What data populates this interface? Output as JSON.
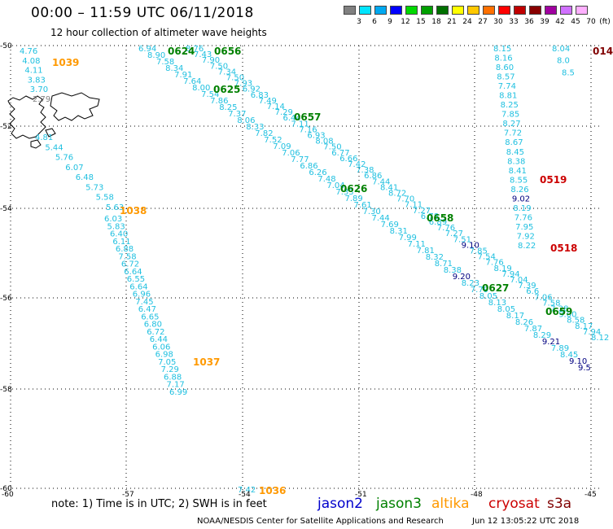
{
  "header": {
    "title": "00:00 – 11:59 UTC 06/11/2018",
    "subtitle": "12 hour collection of altimeter wave heights"
  },
  "colorbar": {
    "units": "(ft)",
    "cells": [
      {
        "label": "3",
        "color": "#808080"
      },
      {
        "label": "6",
        "color": "#00e5ff"
      },
      {
        "label": "9",
        "color": "#00a8f0"
      },
      {
        "label": "12",
        "color": "#0000ff"
      },
      {
        "label": "15",
        "color": "#00d800"
      },
      {
        "label": "18",
        "color": "#00a000"
      },
      {
        "label": "21",
        "color": "#007000"
      },
      {
        "label": "24",
        "color": "#ffff00"
      },
      {
        "label": "27",
        "color": "#ffc800"
      },
      {
        "label": "30",
        "color": "#ff7000"
      },
      {
        "label": "33",
        "color": "#ff0000"
      },
      {
        "label": "36",
        "color": "#c00000"
      },
      {
        "label": "39",
        "color": "#880000"
      },
      {
        "label": "42",
        "color": "#a000a0"
      },
      {
        "label": "45",
        "color": "#d070ff"
      },
      {
        "label": "70",
        "color": "#ffb0ff"
      }
    ]
  },
  "axes": {
    "lat_labels": [
      "-50",
      "-52",
      "-54",
      "-56",
      "-58",
      "-60"
    ],
    "lon_labels": [
      "-60",
      "-57",
      "-54",
      "-51",
      "-48",
      "-45"
    ]
  },
  "colors": {
    "cyan": "#20c0e0",
    "navy": "#000080",
    "green": "#008000",
    "orange": "#ff9900",
    "red": "#cc0000",
    "darkred": "#800000",
    "gray": "#808080",
    "land": "#000000"
  },
  "points": [
    {
      "t": "4.76",
      "c": "cyan"
    },
    {
      "t": "4.08",
      "c": "cyan"
    },
    {
      "t": "4.11",
      "c": "cyan"
    },
    {
      "t": "3.83",
      "c": "cyan"
    },
    {
      "t": "3.70",
      "c": "cyan"
    },
    {
      "t": "2.79",
      "c": "gray"
    },
    {
      "t": "4.81",
      "c": "cyan"
    },
    {
      "t": "5.44",
      "c": "cyan"
    },
    {
      "t": "5.76",
      "c": "cyan"
    },
    {
      "t": "6.07",
      "c": "cyan"
    },
    {
      "t": "6.48",
      "c": "cyan"
    },
    {
      "t": "5.73",
      "c": "cyan"
    },
    {
      "t": "5.58",
      "c": "cyan"
    },
    {
      "t": "5.63",
      "c": "cyan"
    },
    {
      "t": "6.03",
      "c": "cyan"
    },
    {
      "t": "5.83",
      "c": "cyan"
    },
    {
      "t": "6.40",
      "c": "cyan"
    },
    {
      "t": "6.11",
      "c": "cyan"
    },
    {
      "t": "6.88",
      "c": "cyan"
    },
    {
      "t": "7.58",
      "c": "cyan"
    },
    {
      "t": "6.72",
      "c": "cyan"
    },
    {
      "t": "6.64",
      "c": "cyan"
    },
    {
      "t": "6.55",
      "c": "cyan"
    },
    {
      "t": "6.64",
      "c": "cyan"
    },
    {
      "t": "6.96",
      "c": "cyan"
    },
    {
      "t": "7.45",
      "c": "cyan"
    },
    {
      "t": "6.47",
      "c": "cyan"
    },
    {
      "t": "6.65",
      "c": "cyan"
    },
    {
      "t": "6.80",
      "c": "cyan"
    },
    {
      "t": "6.72",
      "c": "cyan"
    },
    {
      "t": "6.44",
      "c": "cyan"
    },
    {
      "t": "6.06",
      "c": "cyan"
    },
    {
      "t": "6.98",
      "c": "cyan"
    },
    {
      "t": "7.05",
      "c": "cyan"
    },
    {
      "t": "7.29",
      "c": "cyan"
    },
    {
      "t": "6.88",
      "c": "cyan"
    },
    {
      "t": "7.17",
      "c": "cyan"
    },
    {
      "t": "6.99",
      "c": "cyan"
    },
    {
      "t": "7.42",
      "c": "cyan"
    },
    {
      "t": "6.94",
      "c": "cyan"
    },
    {
      "t": "8.90",
      "c": "cyan"
    },
    {
      "t": "7.58",
      "c": "cyan"
    },
    {
      "t": "8.34",
      "c": "cyan"
    },
    {
      "t": "7.91",
      "c": "cyan"
    },
    {
      "t": "7.64",
      "c": "cyan"
    },
    {
      "t": "8.00",
      "c": "cyan"
    },
    {
      "t": "7.54",
      "c": "cyan"
    },
    {
      "t": "7.86",
      "c": "cyan"
    },
    {
      "t": "8.25",
      "c": "cyan"
    },
    {
      "t": "7.37",
      "c": "cyan"
    },
    {
      "t": "8.06",
      "c": "cyan"
    },
    {
      "t": "8.33",
      "c": "cyan"
    },
    {
      "t": "7.82",
      "c": "cyan"
    },
    {
      "t": "7.52",
      "c": "cyan"
    },
    {
      "t": "7.09",
      "c": "cyan"
    },
    {
      "t": "7.06",
      "c": "cyan"
    },
    {
      "t": "7.77",
      "c": "cyan"
    },
    {
      "t": "6.86",
      "c": "cyan"
    },
    {
      "t": "6.26",
      "c": "cyan"
    },
    {
      "t": "7.48",
      "c": "cyan"
    },
    {
      "t": "7.04",
      "c": "cyan"
    },
    {
      "t": "7.33",
      "c": "cyan"
    },
    {
      "t": "7.89",
      "c": "cyan"
    },
    {
      "t": "7.61",
      "c": "cyan"
    },
    {
      "t": "7.30",
      "c": "cyan"
    },
    {
      "t": "7.44",
      "c": "cyan"
    },
    {
      "t": "7.69",
      "c": "cyan"
    },
    {
      "t": "8.31",
      "c": "cyan"
    },
    {
      "t": "7.99",
      "c": "cyan"
    },
    {
      "t": "7.11",
      "c": "cyan"
    },
    {
      "t": "7.81",
      "c": "cyan"
    },
    {
      "t": "8.32",
      "c": "cyan"
    },
    {
      "t": "8.71",
      "c": "cyan"
    },
    {
      "t": "8.38",
      "c": "cyan"
    },
    {
      "t": "9.20",
      "c": "navy"
    },
    {
      "t": "8.23",
      "c": "cyan"
    },
    {
      "t": "7.79",
      "c": "cyan"
    },
    {
      "t": "8.05",
      "c": "cyan"
    },
    {
      "t": "8.13",
      "c": "cyan"
    },
    {
      "t": "8.05",
      "c": "cyan"
    },
    {
      "t": "8.17",
      "c": "cyan"
    },
    {
      "t": "8.26",
      "c": "cyan"
    },
    {
      "t": "7.87",
      "c": "cyan"
    },
    {
      "t": "8.29",
      "c": "cyan"
    },
    {
      "t": "9.21",
      "c": "navy"
    },
    {
      "t": "7.89",
      "c": "cyan"
    },
    {
      "t": "8.45",
      "c": "cyan"
    },
    {
      "t": "9.10",
      "c": "navy"
    },
    {
      "t": "9.5",
      "c": "navy"
    },
    {
      "t": "8.76",
      "c": "cyan"
    },
    {
      "t": "7.43",
      "c": "cyan"
    },
    {
      "t": "7.90",
      "c": "cyan"
    },
    {
      "t": "7.50",
      "c": "cyan"
    },
    {
      "t": "7.34",
      "c": "cyan"
    },
    {
      "t": "7.50",
      "c": "cyan"
    },
    {
      "t": "7.93",
      "c": "cyan"
    },
    {
      "t": "6.92",
      "c": "cyan"
    },
    {
      "t": "6.83",
      "c": "cyan"
    },
    {
      "t": "7.49",
      "c": "cyan"
    },
    {
      "t": "7.14",
      "c": "cyan"
    },
    {
      "t": "7.29",
      "c": "cyan"
    },
    {
      "t": "6.44",
      "c": "cyan"
    },
    {
      "t": "7.11",
      "c": "cyan"
    },
    {
      "t": "7.16",
      "c": "cyan"
    },
    {
      "t": "6.93",
      "c": "cyan"
    },
    {
      "t": "8.08",
      "c": "cyan"
    },
    {
      "t": "7.50",
      "c": "cyan"
    },
    {
      "t": "6.77",
      "c": "cyan"
    },
    {
      "t": "6.66",
      "c": "cyan"
    },
    {
      "t": "7.42",
      "c": "cyan"
    },
    {
      "t": "7.38",
      "c": "cyan"
    },
    {
      "t": "6.86",
      "c": "cyan"
    },
    {
      "t": "7.44",
      "c": "cyan"
    },
    {
      "t": "8.41",
      "c": "cyan"
    },
    {
      "t": "8.72",
      "c": "cyan"
    },
    {
      "t": "7.70",
      "c": "cyan"
    },
    {
      "t": "7.11",
      "c": "cyan"
    },
    {
      "t": "7.27",
      "c": "cyan"
    },
    {
      "t": "6.78",
      "c": "cyan"
    },
    {
      "t": "6.89",
      "c": "cyan"
    },
    {
      "t": "7.76",
      "c": "cyan"
    },
    {
      "t": "7.27",
      "c": "cyan"
    },
    {
      "t": "7.51",
      "c": "cyan"
    },
    {
      "t": "9.10",
      "c": "navy"
    },
    {
      "t": "7.85",
      "c": "cyan"
    },
    {
      "t": "7.54",
      "c": "cyan"
    },
    {
      "t": "7.76",
      "c": "cyan"
    },
    {
      "t": "8.19",
      "c": "cyan"
    },
    {
      "t": "7.94",
      "c": "cyan"
    },
    {
      "t": "7.04",
      "c": "cyan"
    },
    {
      "t": "7.39",
      "c": "cyan"
    },
    {
      "t": "6.6",
      "c": "cyan"
    },
    {
      "t": "7.06",
      "c": "cyan"
    },
    {
      "t": "7.58",
      "c": "cyan"
    },
    {
      "t": "7.28",
      "c": "cyan"
    },
    {
      "t": "9.00",
      "c": "cyan"
    },
    {
      "t": "8.58",
      "c": "cyan"
    },
    {
      "t": "8.17",
      "c": "cyan"
    },
    {
      "t": "7.94",
      "c": "cyan"
    },
    {
      "t": "8.12",
      "c": "cyan"
    },
    {
      "t": "8.15",
      "c": "cyan"
    },
    {
      "t": "8.16",
      "c": "cyan"
    },
    {
      "t": "8.60",
      "c": "cyan"
    },
    {
      "t": "8.57",
      "c": "cyan"
    },
    {
      "t": "7.74",
      "c": "cyan"
    },
    {
      "t": "8.81",
      "c": "cyan"
    },
    {
      "t": "8.25",
      "c": "cyan"
    },
    {
      "t": "7.85",
      "c": "cyan"
    },
    {
      "t": "8.27",
      "c": "cyan"
    },
    {
      "t": "7.72",
      "c": "cyan"
    },
    {
      "t": "8.67",
      "c": "cyan"
    },
    {
      "t": "8.45",
      "c": "cyan"
    },
    {
      "t": "8.38",
      "c": "cyan"
    },
    {
      "t": "8.41",
      "c": "cyan"
    },
    {
      "t": "8.55",
      "c": "cyan"
    },
    {
      "t": "8.26",
      "c": "cyan"
    },
    {
      "t": "9.02",
      "c": "navy"
    },
    {
      "t": "8.19",
      "c": "cyan"
    },
    {
      "t": "7.76",
      "c": "cyan"
    },
    {
      "t": "7.95",
      "c": "cyan"
    },
    {
      "t": "7.92",
      "c": "cyan"
    },
    {
      "t": "8.22",
      "c": "cyan"
    },
    {
      "t": "8.04",
      "c": "cyan"
    },
    {
      "t": "8.0",
      "c": "cyan"
    },
    {
      "t": "8.5",
      "c": "cyan"
    }
  ],
  "timestamps": [
    {
      "t": "1039",
      "c": "orange"
    },
    {
      "t": "1038",
      "c": "orange"
    },
    {
      "t": "1037",
      "c": "orange"
    },
    {
      "t": "1036",
      "c": "orange"
    },
    {
      "t": "0624",
      "c": "green"
    },
    {
      "t": "0656",
      "c": "green"
    },
    {
      "t": "0625",
      "c": "green"
    },
    {
      "t": "0657",
      "c": "green"
    },
    {
      "t": "0626",
      "c": "green"
    },
    {
      "t": "0658",
      "c": "green"
    },
    {
      "t": "0627",
      "c": "green"
    },
    {
      "t": "0659",
      "c": "green"
    },
    {
      "t": "0519",
      "c": "red"
    },
    {
      "t": "0518",
      "c": "red"
    },
    {
      "t": "014",
      "c": "darkred"
    }
  ],
  "note": "note:  1) Time is in UTC;  2) SWH is in feet",
  "legend": [
    {
      "label": "jason2",
      "color": "#0000cc"
    },
    {
      "label": "jason3",
      "color": "#008000"
    },
    {
      "label": "altika",
      "color": "#ff9900"
    },
    {
      "label": "cryosat",
      "color": "#cc0000"
    },
    {
      "label": "s3a",
      "color": "#800000"
    }
  ],
  "footer": {
    "credit": "NOAA/NESDIS Center for Satellite Applications and Research",
    "generated": "Jun 12 13:05:22 UTC 2018"
  }
}
